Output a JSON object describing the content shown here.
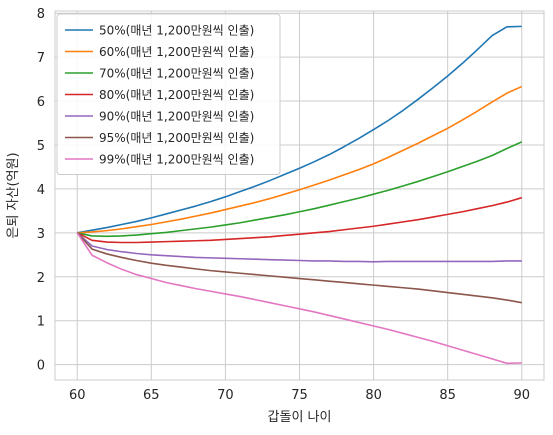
{
  "chart_data": {
    "type": "line",
    "xlabel": "갑돌이 나이",
    "ylabel": "은퇴 자산(억원)",
    "xlim": [
      58.5,
      91.5
    ],
    "ylim": [
      -0.35,
      8.05
    ],
    "xticks": [
      60,
      65,
      70,
      75,
      80,
      85,
      90
    ],
    "xtick_labels": [
      "60",
      "65",
      "70",
      "75",
      "80",
      "85",
      "90"
    ],
    "yticks": [
      0,
      1,
      2,
      3,
      4,
      5,
      6,
      7,
      8
    ],
    "ytick_labels": [
      "0",
      "1",
      "2",
      "3",
      "4",
      "5",
      "6",
      "7",
      "8"
    ],
    "grid": true,
    "legend_position": "top-left",
    "x": [
      60,
      61,
      62,
      63,
      64,
      65,
      66,
      67,
      68,
      69,
      70,
      71,
      72,
      73,
      74,
      75,
      76,
      77,
      78,
      79,
      80,
      81,
      82,
      83,
      84,
      85,
      86,
      87,
      88,
      89,
      90
    ],
    "series": [
      {
        "name": "50%(매년 1,200만원씩 인출)",
        "color": "#1f77b4",
        "values": [
          3.0,
          3.06,
          3.12,
          3.19,
          3.26,
          3.34,
          3.43,
          3.52,
          3.61,
          3.71,
          3.82,
          3.94,
          4.06,
          4.19,
          4.33,
          4.47,
          4.62,
          4.78,
          4.96,
          5.15,
          5.35,
          5.56,
          5.79,
          6.04,
          6.3,
          6.57,
          6.86,
          7.17,
          7.49,
          7.69,
          7.7
        ]
      },
      {
        "name": "60%(매년 1,200만원씩 인출)",
        "color": "#ff7f0e",
        "values": [
          3.0,
          3.02,
          3.05,
          3.09,
          3.14,
          3.19,
          3.25,
          3.31,
          3.38,
          3.45,
          3.53,
          3.61,
          3.69,
          3.78,
          3.88,
          3.98,
          4.09,
          4.2,
          4.32,
          4.44,
          4.57,
          4.72,
          4.88,
          5.04,
          5.21,
          5.38,
          5.57,
          5.77,
          5.98,
          6.18,
          6.33
        ]
      },
      {
        "name": "70%(매년 1,200만원씩 인출)",
        "color": "#2ca02c",
        "values": [
          3.0,
          2.93,
          2.92,
          2.93,
          2.95,
          2.98,
          3.01,
          3.05,
          3.09,
          3.13,
          3.18,
          3.23,
          3.29,
          3.35,
          3.41,
          3.48,
          3.55,
          3.63,
          3.71,
          3.79,
          3.88,
          3.97,
          4.07,
          4.17,
          4.28,
          4.39,
          4.51,
          4.63,
          4.76,
          4.92,
          5.07
        ]
      },
      {
        "name": "80%(매년 1,200만원씩 인출)",
        "color": "#d62728",
        "values": [
          3.0,
          2.83,
          2.79,
          2.78,
          2.78,
          2.79,
          2.8,
          2.81,
          2.82,
          2.83,
          2.85,
          2.87,
          2.89,
          2.91,
          2.94,
          2.97,
          3.0,
          3.03,
          3.07,
          3.11,
          3.15,
          3.2,
          3.25,
          3.3,
          3.36,
          3.42,
          3.48,
          3.55,
          3.62,
          3.7,
          3.8
        ]
      },
      {
        "name": "90%(매년 1,200만원씩 인출)",
        "color": "#9467bd",
        "values": [
          3.0,
          2.7,
          2.62,
          2.57,
          2.53,
          2.5,
          2.48,
          2.46,
          2.44,
          2.43,
          2.42,
          2.41,
          2.4,
          2.39,
          2.38,
          2.37,
          2.36,
          2.36,
          2.35,
          2.35,
          2.34,
          2.35,
          2.35,
          2.35,
          2.35,
          2.35,
          2.35,
          2.35,
          2.35,
          2.36,
          2.36
        ]
      },
      {
        "name": "95%(매년 1,200만원씩 인출)",
        "color": "#8c564b",
        "values": [
          3.0,
          2.63,
          2.52,
          2.44,
          2.37,
          2.31,
          2.26,
          2.22,
          2.18,
          2.14,
          2.11,
          2.08,
          2.05,
          2.02,
          1.99,
          1.96,
          1.93,
          1.9,
          1.87,
          1.84,
          1.81,
          1.78,
          1.75,
          1.72,
          1.68,
          1.64,
          1.6,
          1.56,
          1.52,
          1.47,
          1.41
        ]
      },
      {
        "name": "99%(매년 1,200만원씩 인출)",
        "color": "#e377c2",
        "values": [
          3.0,
          2.49,
          2.32,
          2.17,
          2.05,
          1.96,
          1.87,
          1.8,
          1.73,
          1.67,
          1.61,
          1.55,
          1.48,
          1.41,
          1.34,
          1.27,
          1.2,
          1.12,
          1.04,
          0.96,
          0.88,
          0.8,
          0.71,
          0.62,
          0.53,
          0.43,
          0.33,
          0.23,
          0.13,
          0.03,
          0.04
        ]
      }
    ]
  },
  "style": {
    "grid_color": "#cccccc",
    "axes_edge_color": "#cccccc",
    "legend_edge_color": "#cccccc"
  }
}
